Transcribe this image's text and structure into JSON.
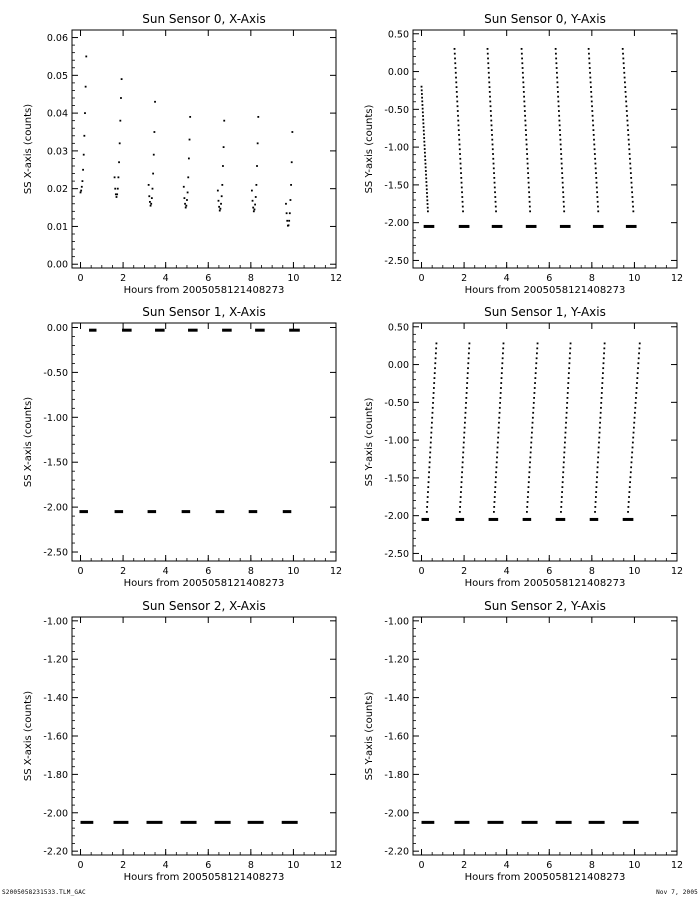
{
  "footer": {
    "file_label": "S2005058231533.TLM_GAC",
    "date_label": "Nov  7, 2005"
  },
  "chart_data": [
    {
      "type": "scatter",
      "title": "Sun Sensor 0, X-Axis",
      "xlabel": "Hours from 2005058121408273",
      "ylabel": "SS X-axis (counts)",
      "xlim": [
        -0.4,
        12.0
      ],
      "ylim": [
        -0.001,
        0.062
      ],
      "xticks": [
        0,
        2,
        4,
        6,
        8,
        10,
        12
      ],
      "xtick_labels": [
        "0",
        "2",
        "4",
        "6",
        "8",
        "10",
        "12"
      ],
      "yticks": [
        0.0,
        0.01,
        0.02,
        0.03,
        0.04,
        0.05,
        0.06
      ],
      "ytick_labels": [
        "0.00",
        "0.01",
        "0.02",
        "0.03",
        "0.04",
        "0.05",
        "0.06"
      ],
      "grid": false,
      "legend": false,
      "series": [
        {
          "marker": "dot",
          "points": [
            [
              0.0,
              0.019
            ],
            [
              0.03,
              0.0195
            ],
            [
              0.06,
              0.0205
            ],
            [
              0.09,
              0.022
            ],
            [
              0.12,
              0.025
            ],
            [
              0.15,
              0.029
            ],
            [
              0.18,
              0.034
            ],
            [
              0.21,
              0.04
            ],
            [
              0.24,
              0.047
            ],
            [
              0.27,
              0.055
            ],
            [
              1.6,
              0.023
            ],
            [
              1.63,
              0.02
            ],
            [
              1.66,
              0.0185
            ],
            [
              1.69,
              0.0178
            ],
            [
              1.72,
              0.0185
            ],
            [
              1.75,
              0.02
            ],
            [
              1.78,
              0.023
            ],
            [
              1.81,
              0.027
            ],
            [
              1.84,
              0.032
            ],
            [
              1.87,
              0.038
            ],
            [
              1.9,
              0.044
            ],
            [
              1.93,
              0.049
            ],
            [
              3.2,
              0.021
            ],
            [
              3.23,
              0.018
            ],
            [
              3.26,
              0.0165
            ],
            [
              3.29,
              0.0155
            ],
            [
              3.32,
              0.016
            ],
            [
              3.35,
              0.0175
            ],
            [
              3.38,
              0.02
            ],
            [
              3.41,
              0.024
            ],
            [
              3.44,
              0.029
            ],
            [
              3.47,
              0.035
            ],
            [
              3.5,
              0.043
            ],
            [
              4.85,
              0.0205
            ],
            [
              4.88,
              0.0175
            ],
            [
              4.91,
              0.016
            ],
            [
              4.94,
              0.015
            ],
            [
              4.97,
              0.0155
            ],
            [
              5.0,
              0.017
            ],
            [
              5.03,
              0.019
            ],
            [
              5.06,
              0.023
            ],
            [
              5.09,
              0.028
            ],
            [
              5.12,
              0.033
            ],
            [
              5.15,
              0.039
            ],
            [
              6.45,
              0.0195
            ],
            [
              6.48,
              0.0168
            ],
            [
              6.51,
              0.0152
            ],
            [
              6.54,
              0.0142
            ],
            [
              6.57,
              0.0147
            ],
            [
              6.6,
              0.016
            ],
            [
              6.63,
              0.018
            ],
            [
              6.66,
              0.021
            ],
            [
              6.69,
              0.026
            ],
            [
              6.72,
              0.031
            ],
            [
              6.75,
              0.038
            ],
            [
              8.05,
              0.0195
            ],
            [
              8.08,
              0.0168
            ],
            [
              8.11,
              0.015
            ],
            [
              8.14,
              0.014
            ],
            [
              8.17,
              0.0145
            ],
            [
              8.2,
              0.0158
            ],
            [
              8.23,
              0.0178
            ],
            [
              8.26,
              0.021
            ],
            [
              8.29,
              0.026
            ],
            [
              8.32,
              0.032
            ],
            [
              8.35,
              0.039
            ],
            [
              9.65,
              0.016
            ],
            [
              9.68,
              0.0135
            ],
            [
              9.71,
              0.0115
            ],
            [
              9.74,
              0.0102
            ],
            [
              9.77,
              0.0103
            ],
            [
              9.8,
              0.0115
            ],
            [
              9.83,
              0.0135
            ],
            [
              9.86,
              0.017
            ],
            [
              9.89,
              0.021
            ],
            [
              9.92,
              0.027
            ],
            [
              9.95,
              0.035
            ]
          ]
        }
      ]
    },
    {
      "type": "scatter",
      "title": "Sun Sensor 0, Y-Axis",
      "xlabel": "Hours from 2005058121408273",
      "ylabel": "SS Y-axis (counts)",
      "xlim": [
        -0.4,
        12.0
      ],
      "ylim": [
        -2.6,
        0.55
      ],
      "xticks": [
        0,
        2,
        4,
        6,
        8,
        10,
        12
      ],
      "xtick_labels": [
        "0",
        "2",
        "4",
        "6",
        "8",
        "10",
        "12"
      ],
      "yticks": [
        -2.5,
        -2.0,
        -1.5,
        -1.0,
        -0.5,
        0.0,
        0.5
      ],
      "ytick_labels": [
        "-2.50",
        "-2.00",
        "-1.50",
        "-1.00",
        "-0.50",
        "0.00",
        "0.50"
      ],
      "grid": false,
      "legend": false,
      "series": [
        {
          "name": "",
          "marker": "dot",
          "segments": [
            {
              "x": [
                0.0,
                0.3
              ],
              "y": [
                -0.2,
                -1.85
              ]
            },
            {
              "x": [
                1.55,
                1.95
              ],
              "y": [
                0.3,
                -1.85
              ]
            },
            {
              "x": [
                3.1,
                3.5
              ],
              "y": [
                0.3,
                -1.85
              ]
            },
            {
              "x": [
                4.7,
                5.1
              ],
              "y": [
                0.3,
                -1.85
              ]
            },
            {
              "x": [
                6.3,
                6.7
              ],
              "y": [
                0.3,
                -1.85
              ]
            },
            {
              "x": [
                7.85,
                8.3
              ],
              "y": [
                0.3,
                -1.85
              ]
            },
            {
              "x": [
                9.45,
                9.95
              ],
              "y": [
                0.3,
                -1.85
              ]
            }
          ],
          "flat_value": -2.05,
          "flat_ranges": [
            [
              0.1,
              0.6
            ],
            [
              1.75,
              2.25
            ],
            [
              3.3,
              3.8
            ],
            [
              4.9,
              5.4
            ],
            [
              6.5,
              7.0
            ],
            [
              8.05,
              8.55
            ],
            [
              9.6,
              10.1
            ]
          ]
        }
      ]
    },
    {
      "type": "scatter",
      "title": "Sun Sensor 1, X-Axis",
      "xlabel": "Hours from 2005058121408273",
      "ylabel": "SS X-axis (counts)",
      "xlim": [
        -0.4,
        12.0
      ],
      "ylim": [
        -2.6,
        0.05
      ],
      "xticks": [
        0,
        2,
        4,
        6,
        8,
        10,
        12
      ],
      "xtick_labels": [
        "0",
        "2",
        "4",
        "6",
        "8",
        "10",
        "12"
      ],
      "yticks": [
        -2.5,
        -2.0,
        -1.5,
        -1.0,
        -0.5,
        0.0
      ],
      "ytick_labels": [
        "-2.50",
        "-2.00",
        "-1.50",
        "-1.00",
        "-0.50",
        "0.00"
      ],
      "grid": false,
      "legend": false,
      "series": [
        {
          "marker": "dot",
          "upper_value": -0.03,
          "upper_ranges": [
            [
              0.4,
              0.75
            ],
            [
              1.95,
              2.4
            ],
            [
              3.5,
              3.95
            ],
            [
              5.05,
              5.5
            ],
            [
              6.65,
              7.1
            ],
            [
              8.2,
              8.65
            ],
            [
              9.8,
              10.3
            ]
          ],
          "flat_value": -2.05,
          "flat_ranges": [
            [
              -0.05,
              0.35
            ],
            [
              1.6,
              2.0
            ],
            [
              3.15,
              3.55
            ],
            [
              4.75,
              5.15
            ],
            [
              6.35,
              6.75
            ],
            [
              7.9,
              8.3
            ],
            [
              9.5,
              9.9
            ]
          ]
        }
      ]
    },
    {
      "type": "scatter",
      "title": "Sun Sensor 1, Y-Axis",
      "xlabel": "Hours from 2005058121408273",
      "ylabel": "SS Y-axis (counts)",
      "xlim": [
        -0.4,
        12.0
      ],
      "ylim": [
        -2.6,
        0.55
      ],
      "xticks": [
        0,
        2,
        4,
        6,
        8,
        10,
        12
      ],
      "xtick_labels": [
        "0",
        "2",
        "4",
        "6",
        "8",
        "10",
        "12"
      ],
      "yticks": [
        -2.5,
        -2.0,
        -1.5,
        -1.0,
        -0.5,
        0.0,
        0.5
      ],
      "ytick_labels": [
        "-2.50",
        "-2.00",
        "-1.50",
        "-1.00",
        "-0.50",
        "0.00",
        "0.50"
      ],
      "grid": false,
      "legend": false,
      "series": [
        {
          "marker": "dot",
          "segments": [
            {
              "x": [
                0.25,
                0.7
              ],
              "y": [
                -1.95,
                0.28
              ]
            },
            {
              "x": [
                1.8,
                2.25
              ],
              "y": [
                -1.95,
                0.28
              ]
            },
            {
              "x": [
                3.4,
                3.85
              ],
              "y": [
                -1.95,
                0.28
              ]
            },
            {
              "x": [
                4.95,
                5.45
              ],
              "y": [
                -1.95,
                0.28
              ]
            },
            {
              "x": [
                6.55,
                7.0
              ],
              "y": [
                -1.95,
                0.28
              ]
            },
            {
              "x": [
                8.15,
                8.6
              ],
              "y": [
                -1.95,
                0.28
              ]
            },
            {
              "x": [
                9.7,
                10.25
              ],
              "y": [
                -1.95,
                0.28
              ]
            }
          ],
          "flat_value": -2.05,
          "flat_ranges": [
            [
              0.0,
              0.35
            ],
            [
              1.6,
              2.0
            ],
            [
              3.15,
              3.6
            ],
            [
              4.75,
              5.15
            ],
            [
              6.3,
              6.75
            ],
            [
              7.9,
              8.3
            ],
            [
              9.45,
              9.95
            ]
          ]
        }
      ]
    },
    {
      "type": "scatter",
      "title": "Sun Sensor 2, X-Axis",
      "xlabel": "Hours from 2005058121408273",
      "ylabel": "SS X-axis (counts)",
      "xlim": [
        -0.4,
        12.0
      ],
      "ylim": [
        -2.22,
        -0.98
      ],
      "xticks": [
        0,
        2,
        4,
        6,
        8,
        10,
        12
      ],
      "xtick_labels": [
        "0",
        "2",
        "4",
        "6",
        "8",
        "10",
        "12"
      ],
      "yticks": [
        -2.2,
        -2.0,
        -1.8,
        -1.6,
        -1.4,
        -1.2,
        -1.0
      ],
      "ytick_labels": [
        "-2.20",
        "-2.00",
        "-1.80",
        "-1.60",
        "-1.40",
        "-1.20",
        "-1.00"
      ],
      "grid": false,
      "legend": false,
      "series": [
        {
          "marker": "dot",
          "flat_value": -2.05,
          "flat_ranges": [
            [
              0.0,
              0.6
            ],
            [
              1.55,
              2.25
            ],
            [
              3.1,
              3.85
            ],
            [
              4.7,
              5.45
            ],
            [
              6.3,
              7.05
            ],
            [
              7.85,
              8.6
            ],
            [
              9.45,
              10.2
            ]
          ]
        }
      ]
    },
    {
      "type": "scatter",
      "title": "Sun Sensor 2, Y-Axis",
      "xlabel": "Hours from 2005058121408273",
      "ylabel": "SS Y-axis (counts)",
      "xlim": [
        -0.4,
        12.0
      ],
      "ylim": [
        -2.22,
        -0.98
      ],
      "xticks": [
        0,
        2,
        4,
        6,
        8,
        10,
        12
      ],
      "xtick_labels": [
        "0",
        "2",
        "4",
        "6",
        "8",
        "10",
        "12"
      ],
      "yticks": [
        -2.2,
        -2.0,
        -1.8,
        -1.6,
        -1.4,
        -1.2,
        -1.0
      ],
      "ytick_labels": [
        "-2.20",
        "-2.00",
        "-1.80",
        "-1.60",
        "-1.40",
        "-1.20",
        "-1.00"
      ],
      "grid": false,
      "legend": false,
      "series": [
        {
          "marker": "dot",
          "flat_value": -2.05,
          "flat_ranges": [
            [
              0.0,
              0.6
            ],
            [
              1.55,
              2.25
            ],
            [
              3.1,
              3.85
            ],
            [
              4.7,
              5.45
            ],
            [
              6.3,
              7.05
            ],
            [
              7.85,
              8.6
            ],
            [
              9.45,
              10.2
            ]
          ]
        }
      ]
    }
  ]
}
